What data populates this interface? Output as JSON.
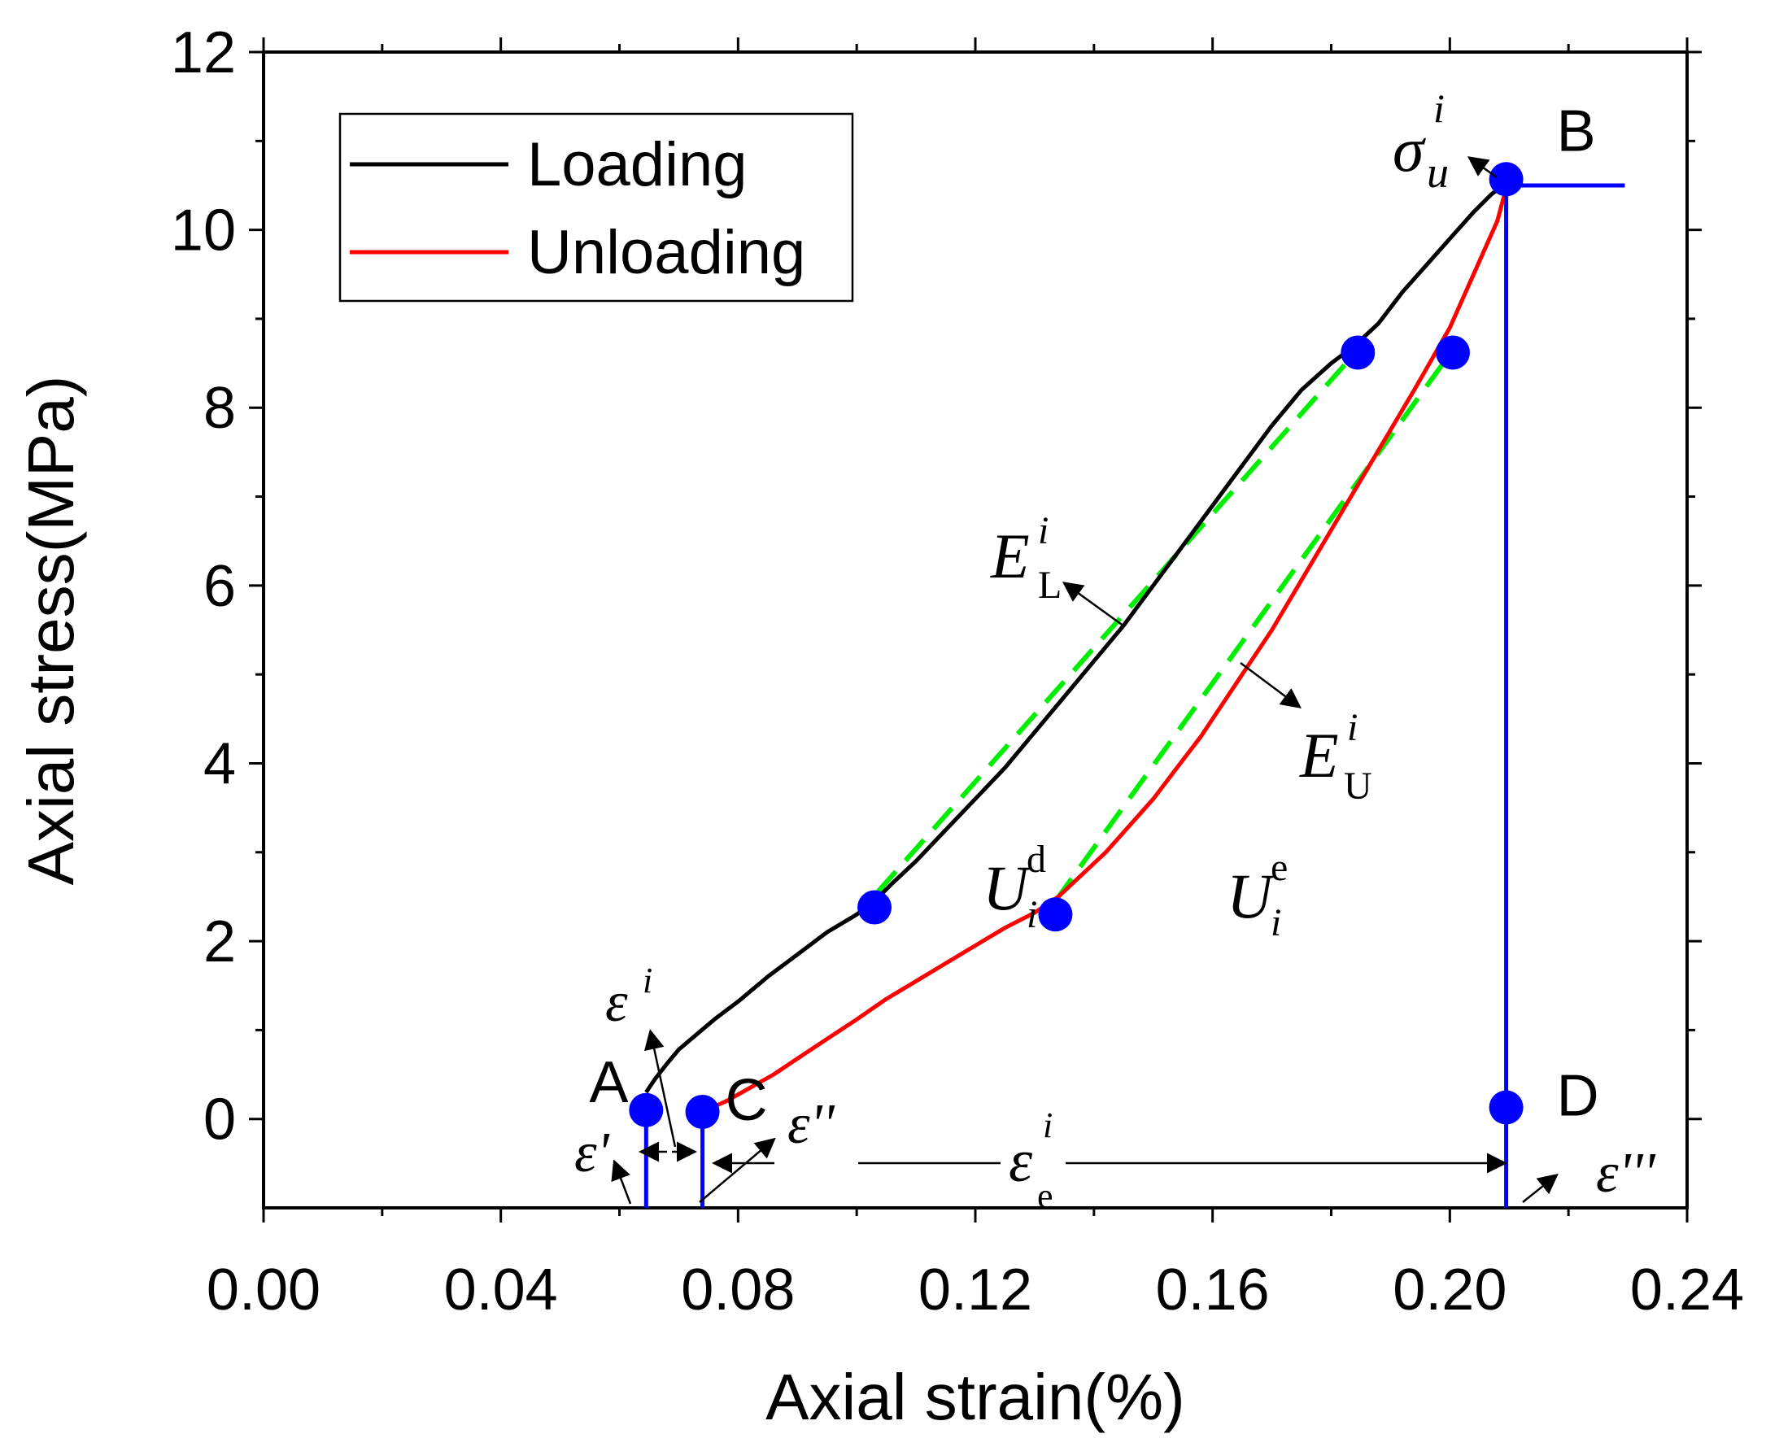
{
  "chart_data": {
    "type": "line",
    "xlabel": "Axial strain(%)",
    "ylabel": "Axial stress(MPa)",
    "xlim": [
      0.0,
      0.24
    ],
    "ylim": [
      -1,
      12
    ],
    "x_ticks": [
      "0.00",
      "0.04",
      "0.08",
      "0.12",
      "0.16",
      "0.20",
      "0.24"
    ],
    "x_tick_values": [
      0.0,
      0.04,
      0.08,
      0.12,
      0.16,
      0.2,
      0.24
    ],
    "y_ticks": [
      "0",
      "2",
      "4",
      "6",
      "8",
      "10",
      "12"
    ],
    "y_tick_values": [
      0,
      2,
      4,
      6,
      8,
      10,
      12
    ],
    "legend": {
      "position": "top-left"
    },
    "series": [
      {
        "name": "Loading",
        "color": "#000000",
        "x": [
          0.0645,
          0.066,
          0.068,
          0.07,
          0.073,
          0.076,
          0.08,
          0.085,
          0.09,
          0.095,
          0.1,
          0.103,
          0.106,
          0.11,
          0.115,
          0.12,
          0.125,
          0.13,
          0.135,
          0.14,
          0.145,
          0.15,
          0.155,
          0.16,
          0.165,
          0.17,
          0.175,
          0.18,
          0.184,
          0.188,
          0.192,
          0.196,
          0.2,
          0.204,
          0.207,
          0.21
        ],
        "y": [
          0.3,
          0.45,
          0.62,
          0.78,
          0.95,
          1.12,
          1.32,
          1.6,
          1.85,
          2.1,
          2.3,
          2.45,
          2.65,
          2.9,
          3.25,
          3.6,
          3.95,
          4.35,
          4.75,
          5.15,
          5.55,
          6.0,
          6.45,
          6.9,
          7.35,
          7.8,
          8.2,
          8.5,
          8.7,
          8.95,
          9.3,
          9.6,
          9.9,
          10.2,
          10.4,
          10.55
        ]
      },
      {
        "name": "Unloading",
        "color": "#ff0000",
        "x": [
          0.074,
          0.078,
          0.082,
          0.086,
          0.09,
          0.095,
          0.1,
          0.105,
          0.11,
          0.115,
          0.12,
          0.125,
          0.13,
          0.134,
          0.138,
          0.142,
          0.146,
          0.15,
          0.154,
          0.158,
          0.162,
          0.166,
          0.17,
          0.174,
          0.178,
          0.182,
          0.186,
          0.19,
          0.194,
          0.197,
          0.2,
          0.202,
          0.204,
          0.206,
          0.208,
          0.209,
          0.21
        ],
        "y": [
          0.08,
          0.2,
          0.35,
          0.5,
          0.68,
          0.9,
          1.12,
          1.35,
          1.55,
          1.75,
          1.95,
          2.15,
          2.32,
          2.5,
          2.75,
          3.0,
          3.3,
          3.6,
          3.95,
          4.3,
          4.7,
          5.1,
          5.5,
          5.95,
          6.4,
          6.85,
          7.3,
          7.75,
          8.2,
          8.55,
          8.9,
          9.2,
          9.5,
          9.8,
          10.1,
          10.35,
          10.55
        ]
      }
    ],
    "tangent_lines": [
      {
        "name": "E_L_tangent",
        "color": "#00ee00",
        "x": [
          0.1035,
          0.1845
        ],
        "y": [
          2.55,
          8.65
        ]
      },
      {
        "name": "E_U_tangent",
        "color": "#00ee00",
        "x": [
          0.1335,
          0.2005
        ],
        "y": [
          2.45,
          8.65
        ]
      }
    ],
    "points": [
      {
        "label": "A",
        "x": 0.0645,
        "y": 0.1
      },
      {
        "label": "C",
        "x": 0.074,
        "y": 0.08
      },
      {
        "label": "",
        "x": 0.103,
        "y": 2.38
      },
      {
        "label": "",
        "x": 0.1335,
        "y": 2.3
      },
      {
        "label": "",
        "x": 0.1845,
        "y": 8.62
      },
      {
        "label": "",
        "x": 0.2005,
        "y": 8.62
      },
      {
        "label": "B",
        "x": 0.2095,
        "y": 10.57
      },
      {
        "label": "D",
        "x": 0.2095,
        "y": 0.13
      }
    ],
    "blue_lines": [
      {
        "name": "A-drop",
        "x": [
          0.0645,
          0.0645
        ],
        "y": [
          0.1,
          -1
        ]
      },
      {
        "name": "C-drop",
        "x": [
          0.074,
          0.074
        ],
        "y": [
          0.08,
          -1
        ]
      },
      {
        "name": "B-D vertical",
        "x": [
          0.2095,
          0.2095
        ],
        "y": [
          10.57,
          -1
        ]
      },
      {
        "name": "B-horizontal",
        "x": [
          0.2095,
          0.2295
        ],
        "y": [
          10.5,
          10.5
        ]
      }
    ],
    "annotations": {
      "sigma_u": {
        "sym": "σ",
        "sup": "i",
        "sub": "u"
      },
      "E_L": {
        "sym": "E",
        "sup": "i",
        "sub": "L"
      },
      "E_U": {
        "sym": "E",
        "sup": "i",
        "sub": "U"
      },
      "U_d": {
        "sym": "U",
        "sup": "d",
        "sub": "i"
      },
      "U_e": {
        "sym": "U",
        "sup": "e",
        "sub": "i"
      },
      "eps_i": {
        "sym": "ε",
        "sup": "i"
      },
      "eps_1": {
        "sym": "ε'"
      },
      "eps_2": {
        "sym": "ε''"
      },
      "eps_3": {
        "sym": "ε'''"
      },
      "eps_e": {
        "sym": "ε",
        "sup": "i",
        "sub": "e"
      }
    }
  }
}
